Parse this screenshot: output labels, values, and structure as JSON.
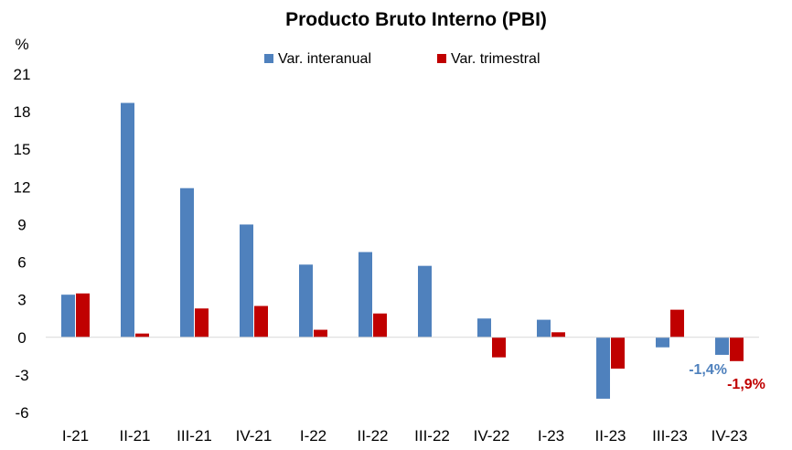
{
  "chart_data": {
    "type": "bar",
    "title": "Producto Bruto Interno (PBI)",
    "y_unit_label": "%",
    "categories": [
      "I-21",
      "II-21",
      "III-21",
      "IV-21",
      "I-22",
      "II-22",
      "III-22",
      "IV-22",
      "I-23",
      "II-23",
      "III-23",
      "IV-23"
    ],
    "series": [
      {
        "name": "Var. interanual",
        "color": "#4f81bd",
        "values": [
          3.4,
          18.7,
          11.9,
          9.0,
          5.8,
          6.8,
          5.7,
          1.5,
          1.4,
          -4.9,
          -0.8,
          -1.4
        ]
      },
      {
        "name": "Var. trimestral",
        "color": "#c00000",
        "values": [
          3.5,
          0.3,
          2.3,
          2.5,
          0.6,
          1.9,
          0.0,
          -1.6,
          0.4,
          -2.5,
          2.2,
          -1.9
        ]
      }
    ],
    "ylim": [
      -6,
      21
    ],
    "yticks": [
      21,
      18,
      15,
      12,
      9,
      6,
      3,
      0,
      -3,
      -6
    ],
    "grid": false,
    "legend_position": "top-center",
    "annotations": [
      {
        "text": "-1,4%",
        "category": "IV-23",
        "series": "Var. interanual",
        "color": "#4f81bd"
      },
      {
        "text": "-1,9%",
        "category": "IV-23",
        "series": "Var. trimestral",
        "color": "#c00000"
      }
    ]
  }
}
